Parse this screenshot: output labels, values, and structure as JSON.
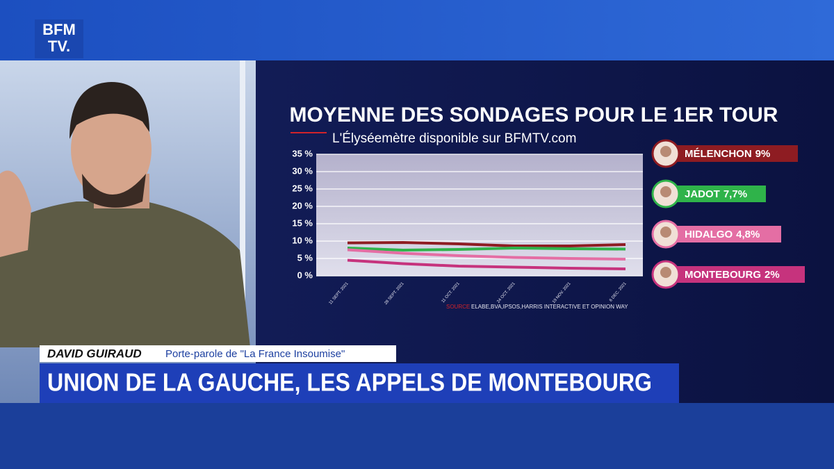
{
  "broadcast": {
    "logo_top": "BFM",
    "logo_bottom": "TV.",
    "speaker_name": "DAVID GUIRAUD",
    "speaker_role": "Porte-parole de \"La France Insoumise\"",
    "headline": "UNION DE LA GAUCHE, LES APPELS DE MONTEBOURG"
  },
  "chart_data": {
    "type": "line",
    "title": "MOYENNE DES SONDAGES POUR LE 1ER TOUR",
    "subtitle": "L'Élyséemètre disponible sur BFMTV.com",
    "source_label": "SOURCE",
    "source": "ELABE,BVA,IPSOS,HARRIS INTERACTIVE ET OPINION WAY",
    "categories": [
      "11 SEPT. 2021",
      "28 SEPT. 2021",
      "11 OCT. 2021",
      "24 OCT. 2021",
      "19 NOV. 2021",
      "6 DEC. 2021"
    ],
    "series": [
      {
        "name": "MÉLENCHON",
        "legend_label": "9%",
        "color": "#8e1c22",
        "values": [
          9.5,
          9.6,
          9.2,
          8.6,
          8.6,
          9.0
        ]
      },
      {
        "name": "JADOT",
        "legend_label": "7,7%",
        "color": "#2fb34a",
        "values": [
          8.0,
          7.4,
          7.6,
          8.0,
          7.8,
          7.7
        ]
      },
      {
        "name": "HIDALGO",
        "legend_label": "4,8%",
        "color": "#e46ea4",
        "values": [
          7.5,
          6.5,
          5.8,
          5.3,
          5.0,
          4.8
        ]
      },
      {
        "name": "MONTEBOURG",
        "legend_label": "2%",
        "color": "#c6337d",
        "values": [
          4.5,
          3.5,
          2.8,
          2.5,
          2.2,
          2.0
        ]
      }
    ],
    "ylim": [
      0,
      35
    ],
    "yticks": [
      {
        "value": 0,
        "label": "0 %"
      },
      {
        "value": 5,
        "label": "5 %"
      },
      {
        "value": 10,
        "label": "10 %"
      },
      {
        "value": 15,
        "label": "15 %"
      },
      {
        "value": 20,
        "label": "20 %"
      },
      {
        "value": 25,
        "label": "25 %"
      },
      {
        "value": 30,
        "label": "30 %"
      },
      {
        "value": 35,
        "label": "35 %"
      }
    ],
    "grid": true
  }
}
